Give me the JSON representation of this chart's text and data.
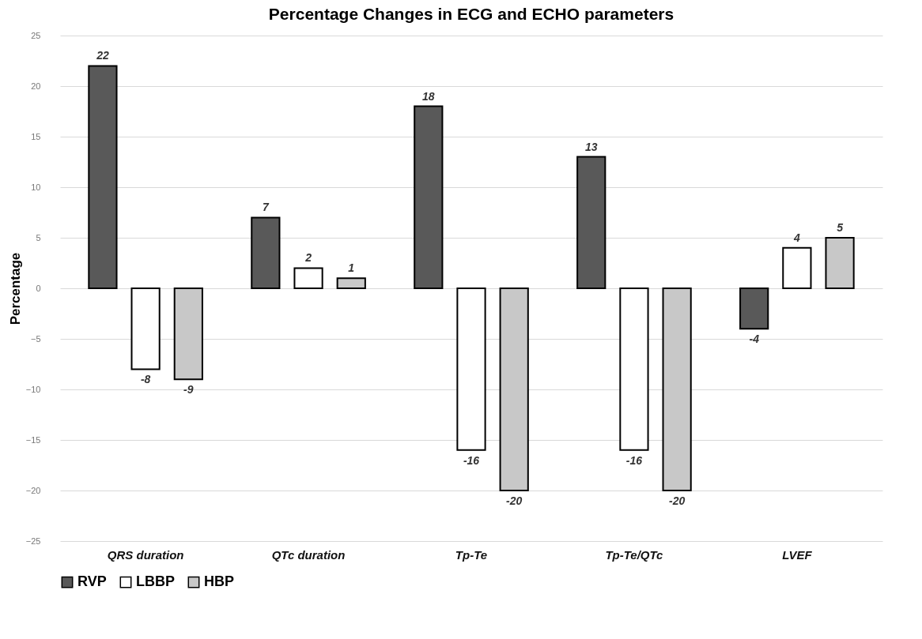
{
  "chart_data": {
    "type": "bar",
    "title": "Percentage Changes in ECG and ECHO parameters",
    "ylabel": "Percentage",
    "categories": [
      "QRS duration",
      "QTc duration",
      "Tp-Te",
      "Tp-Te/QTc",
      "LVEF"
    ],
    "series": [
      {
        "name": "RVP",
        "color": "#595959",
        "values": [
          22,
          7,
          18,
          13,
          -4
        ]
      },
      {
        "name": "LBBP",
        "color": "#ffffff",
        "values": [
          -8,
          2,
          -16,
          -16,
          4
        ]
      },
      {
        "name": "HBP",
        "color": "#c8c8c8",
        "values": [
          -9,
          1,
          -20,
          -20,
          5
        ]
      }
    ],
    "ylim": [
      -25,
      25
    ],
    "yticks": [
      -25,
      -20,
      -15,
      -10,
      -5,
      0,
      5,
      10,
      15,
      20,
      25
    ],
    "grid": "y",
    "legend": "bottom",
    "data_labels": true
  }
}
